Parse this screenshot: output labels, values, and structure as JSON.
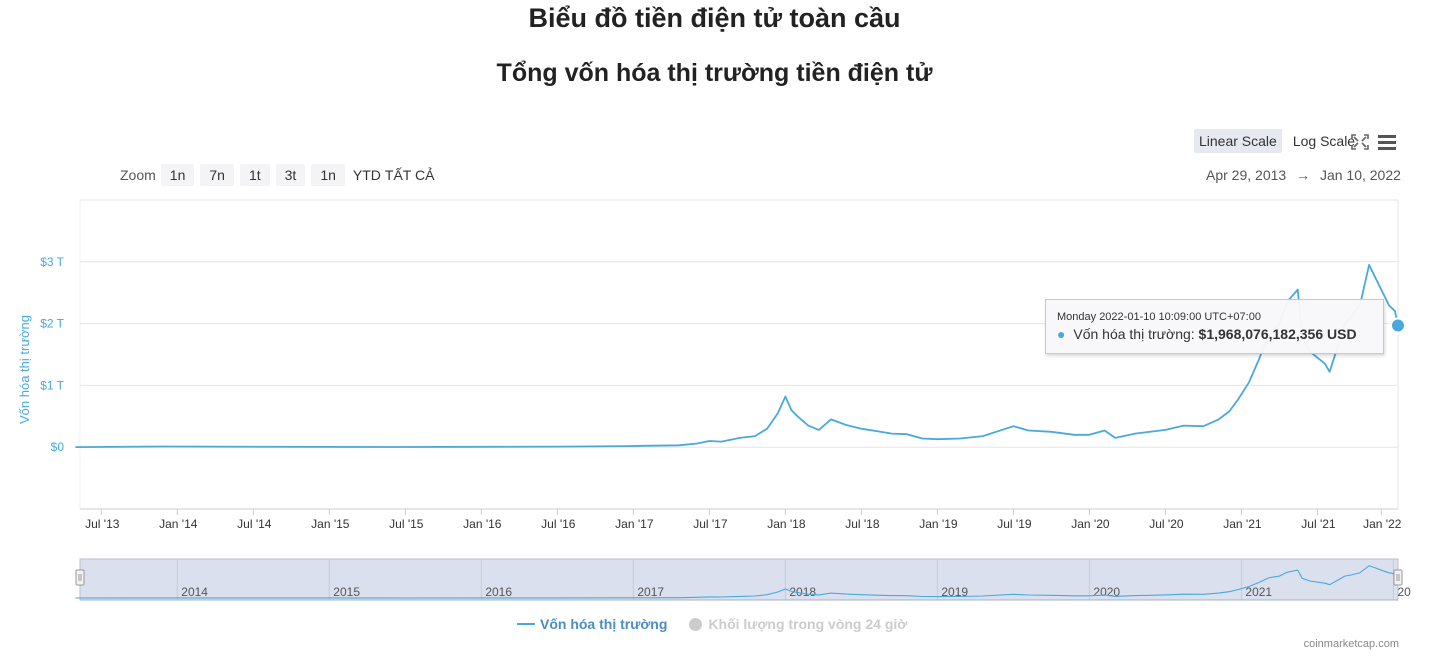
{
  "header": {
    "title": "Biểu đồ tiền điện tử toàn cầu",
    "subtitle": "Tổng vốn hóa thị trường tiền điện tử"
  },
  "scale": {
    "linear": "Linear Scale",
    "log": "Log Scale",
    "active": "linear"
  },
  "zoom": {
    "label": "Zoom",
    "buttons": [
      "1n",
      "7n",
      "1t",
      "3t",
      "1n",
      "YTD",
      "TẤT CẢ"
    ]
  },
  "range": {
    "from": "Apr 29, 2013",
    "arrow": "→",
    "to": "Jan 10, 2022"
  },
  "tooltip": {
    "date": "Monday 2022-01-10 10:09:00 UTC+07:00",
    "bullet": "●",
    "series": "Vốn hóa thị trường:",
    "value": "$1,968,076,182,356 USD"
  },
  "legend": {
    "series1": "Vốn hóa thị trường",
    "series2": "Khối lượng trong vòng 24 giờ"
  },
  "credit": "coinmarketcap.com",
  "colors": {
    "line": "#4aa8db",
    "grid": "#e6e6e6",
    "navigator": "#dbe0ef"
  },
  "chart_data": {
    "type": "line",
    "ylabel": "Vốn hóa thị trường",
    "ylim": [
      -1,
      4
    ],
    "yticks": [
      {
        "value": 3,
        "label": "$3 T"
      },
      {
        "value": 2,
        "label": "$2 T"
      },
      {
        "value": 1,
        "label": "$1 T"
      },
      {
        "value": 0,
        "label": "$0"
      }
    ],
    "xlim": [
      2013.36,
      2022.03
    ],
    "xticks": [
      {
        "value": 2013.5,
        "label": "Jul '13"
      },
      {
        "value": 2014.0,
        "label": "Jan '14"
      },
      {
        "value": 2014.5,
        "label": "Jul '14"
      },
      {
        "value": 2015.0,
        "label": "Jan '15"
      },
      {
        "value": 2015.5,
        "label": "Jul '15"
      },
      {
        "value": 2016.0,
        "label": "Jan '16"
      },
      {
        "value": 2016.5,
        "label": "Jul '16"
      },
      {
        "value": 2017.0,
        "label": "Jan '17"
      },
      {
        "value": 2017.5,
        "label": "Jul '17"
      },
      {
        "value": 2018.0,
        "label": "Jan '18"
      },
      {
        "value": 2018.5,
        "label": "Jul '18"
      },
      {
        "value": 2019.0,
        "label": "Jan '19"
      },
      {
        "value": 2019.5,
        "label": "Jul '19"
      },
      {
        "value": 2020.0,
        "label": "Jan '20"
      },
      {
        "value": 2020.5,
        "label": "Jul '20"
      },
      {
        "value": 2021.0,
        "label": "Jan '21"
      },
      {
        "value": 2021.5,
        "label": "Jul '21"
      },
      {
        "value": 2021.92,
        "label": "Jan '22"
      }
    ],
    "navigator_years": [
      {
        "value": 2014.0,
        "label": "2014"
      },
      {
        "value": 2015.0,
        "label": "2015"
      },
      {
        "value": 2016.0,
        "label": "2016"
      },
      {
        "value": 2017.0,
        "label": "2017"
      },
      {
        "value": 2018.0,
        "label": "2018"
      },
      {
        "value": 2019.0,
        "label": "2019"
      },
      {
        "value": 2020.0,
        "label": "2020"
      },
      {
        "value": 2021.0,
        "label": "2021"
      },
      {
        "value": 2022.0,
        "label": "20"
      }
    ],
    "series": [
      {
        "name": "Vốn hóa thị trường",
        "points": [
          [
            2013.33,
            0.0015
          ],
          [
            2013.9,
            0.012
          ],
          [
            2014.2,
            0.01
          ],
          [
            2014.9,
            0.005
          ],
          [
            2015.5,
            0.004
          ],
          [
            2016.0,
            0.006
          ],
          [
            2016.5,
            0.01
          ],
          [
            2016.95,
            0.017
          ],
          [
            2017.3,
            0.03
          ],
          [
            2017.42,
            0.06
          ],
          [
            2017.5,
            0.1
          ],
          [
            2017.58,
            0.09
          ],
          [
            2017.7,
            0.15
          ],
          [
            2017.8,
            0.18
          ],
          [
            2017.88,
            0.3
          ],
          [
            2017.95,
            0.55
          ],
          [
            2018.0,
            0.82
          ],
          [
            2018.04,
            0.6
          ],
          [
            2018.08,
            0.5
          ],
          [
            2018.15,
            0.35
          ],
          [
            2018.22,
            0.28
          ],
          [
            2018.3,
            0.45
          ],
          [
            2018.4,
            0.36
          ],
          [
            2018.5,
            0.3
          ],
          [
            2018.6,
            0.26
          ],
          [
            2018.7,
            0.22
          ],
          [
            2018.8,
            0.21
          ],
          [
            2018.9,
            0.14
          ],
          [
            2019.0,
            0.13
          ],
          [
            2019.15,
            0.14
          ],
          [
            2019.3,
            0.18
          ],
          [
            2019.45,
            0.3
          ],
          [
            2019.5,
            0.34
          ],
          [
            2019.6,
            0.27
          ],
          [
            2019.75,
            0.25
          ],
          [
            2019.9,
            0.2
          ],
          [
            2020.0,
            0.2
          ],
          [
            2020.1,
            0.27
          ],
          [
            2020.17,
            0.15
          ],
          [
            2020.3,
            0.22
          ],
          [
            2020.5,
            0.28
          ],
          [
            2020.62,
            0.35
          ],
          [
            2020.75,
            0.34
          ],
          [
            2020.85,
            0.45
          ],
          [
            2020.92,
            0.58
          ],
          [
            2020.98,
            0.78
          ],
          [
            2021.05,
            1.05
          ],
          [
            2021.12,
            1.45
          ],
          [
            2021.18,
            1.85
          ],
          [
            2021.25,
            2.0
          ],
          [
            2021.3,
            2.35
          ],
          [
            2021.37,
            2.55
          ],
          [
            2021.4,
            1.8
          ],
          [
            2021.45,
            1.55
          ],
          [
            2021.55,
            1.35
          ],
          [
            2021.58,
            1.22
          ],
          [
            2021.63,
            1.6
          ],
          [
            2021.68,
            2.0
          ],
          [
            2021.72,
            2.1
          ],
          [
            2021.78,
            2.3
          ],
          [
            2021.84,
            2.95
          ],
          [
            2021.88,
            2.75
          ],
          [
            2021.93,
            2.5
          ],
          [
            2021.97,
            2.3
          ],
          [
            2022.01,
            2.2
          ],
          [
            2022.03,
            1.97
          ]
        ]
      }
    ]
  }
}
